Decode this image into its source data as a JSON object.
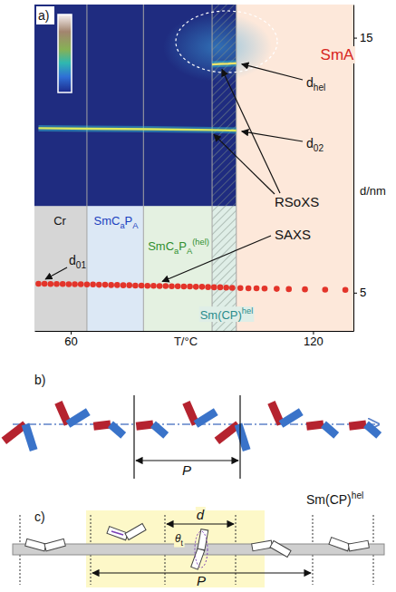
{
  "chart_data": {
    "type": "scatter",
    "panel_label": "a)",
    "x_label": "T/°C",
    "y_label": "d/nm",
    "xlim": [
      51,
      130
    ],
    "xticks": [
      60,
      120
    ],
    "ylim": [
      3.5,
      16.3
    ],
    "yticks": [
      5,
      15
    ],
    "phases": [
      {
        "label": [
          {
            "main": "Cr"
          }
        ],
        "range": [
          51,
          64
        ],
        "color": "#d6d6d6"
      },
      {
        "label": [
          {
            "main": "SmC",
            "sub": "a"
          },
          {
            "main": "P",
            "sub": "A"
          }
        ],
        "range": [
          64,
          78
        ],
        "color": "#dce8f5"
      },
      {
        "label": [
          {
            "main": "SmC",
            "sub": "a"
          },
          {
            "main": "P",
            "sub": "A",
            "sup": "(hel)"
          }
        ],
        "range": [
          78,
          95
        ],
        "color": "#e4f1e1"
      },
      {
        "label": [
          {
            "main": "Sm(CP)",
            "sup": "hel"
          }
        ],
        "range": [
          95,
          101
        ],
        "color": "#dfeee7"
      },
      {
        "label": [
          {
            "main": "SmA"
          }
        ],
        "range": [
          101,
          130
        ],
        "color": "#fde8da"
      }
    ],
    "rsoxs_extent": {
      "x": [
        51,
        101
      ],
      "y": [
        8.4,
        16.3
      ]
    },
    "rsoxs_label": "RSoXS",
    "saxs_label": "SAXS",
    "series": [
      {
        "type": "scatter",
        "color": "#e3342a",
        "marker": "circle",
        "label": [
          {
            "main": "d",
            "sub": "01"
          }
        ],
        "x": [
          52,
          53.5,
          55,
          56.5,
          58,
          59.5,
          61,
          62.5,
          64,
          65.5,
          67,
          68.5,
          70,
          71.5,
          73,
          74.5,
          76,
          77.5,
          79,
          80.5,
          82,
          83.5,
          85,
          86.5,
          88,
          89.5,
          91,
          92.5,
          94,
          95.5,
          97,
          98.5,
          100,
          102,
          104,
          106,
          108,
          111,
          114,
          118,
          123,
          128
        ],
        "values": [
          5.35,
          5.35,
          5.34,
          5.34,
          5.34,
          5.33,
          5.33,
          5.33,
          5.32,
          5.32,
          5.31,
          5.31,
          5.3,
          5.3,
          5.29,
          5.29,
          5.28,
          5.28,
          5.27,
          5.27,
          5.26,
          5.26,
          5.25,
          5.25,
          5.24,
          5.24,
          5.23,
          5.23,
          5.22,
          5.21,
          5.21,
          5.2,
          5.19,
          5.18,
          5.17,
          5.17,
          5.16,
          5.15,
          5.14,
          5.13,
          5.12,
          5.11
        ]
      },
      {
        "type": "line",
        "color": "#dbe85c",
        "label": [
          {
            "main": "d",
            "sub": "02"
          }
        ],
        "x": [
          52,
          65,
          80,
          95,
          101
        ],
        "values": [
          11.45,
          11.43,
          11.41,
          11.38,
          11.36
        ]
      },
      {
        "type": "line",
        "color": "#ece36a",
        "label": [
          {
            "main": "d",
            "sub": "hel"
          }
        ],
        "x": [
          95,
          97,
          99,
          101
        ],
        "values": [
          13.95,
          13.97,
          13.98,
          14.0
        ]
      }
    ]
  },
  "diagrams": {
    "b": {
      "panel_label": "b)",
      "period_label": "P",
      "phase_label": [
        {
          "main": "Sm(CP)",
          "sup": "hel"
        }
      ]
    },
    "c": {
      "panel_label": "c)",
      "spacing_label": "d",
      "tilt_label": [
        {
          "main": "θ",
          "sub": "t"
        }
      ],
      "period_label": "P"
    }
  }
}
